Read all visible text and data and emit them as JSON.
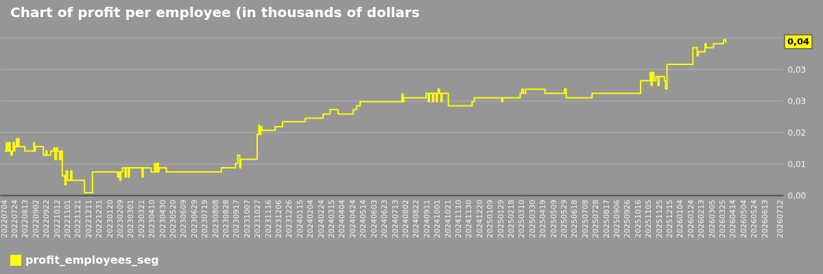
{
  "chart_data": {
    "type": "step",
    "title": "Chart of profit per employee (in thousands of dollars",
    "x": [
      "2022-07-05",
      "2022-07-08",
      "2022-07-10",
      "2022-07-13",
      "2022-07-15",
      "2022-07-17",
      "2022-07-19",
      "2022-07-21",
      "2022-07-23",
      "2022-07-24",
      "2022-07-27",
      "2022-07-29",
      "2022-07-30",
      "2022-08-01",
      "2022-08-12",
      "2022-08-29",
      "2022-08-30",
      "2022-09-01",
      "2022-09-16",
      "2022-09-21",
      "2022-09-23",
      "2022-09-30",
      "2022-10-06",
      "2022-10-08",
      "2022-10-11",
      "2022-10-13",
      "2022-10-17",
      "2022-10-19",
      "2022-10-22",
      "2022-10-27",
      "2022-10-29",
      "2022-11-01",
      "2022-11-07",
      "2022-11-09",
      "2022-12-03",
      "2022-12-18",
      "2023-02-04",
      "2023-02-06",
      "2023-02-08",
      "2023-02-10",
      "2023-02-13",
      "2023-02-18",
      "2023-02-20",
      "2023-02-24",
      "2023-02-26",
      "2023-03-22",
      "2023-03-24",
      "2023-04-08",
      "2023-04-15",
      "2023-04-17",
      "2023-04-20",
      "2023-04-22",
      "2023-04-23",
      "2023-05-07",
      "2023-08-19",
      "2023-09-15",
      "2023-09-19",
      "2023-09-23",
      "2023-09-25",
      "2023-10-26",
      "2023-10-29",
      "2023-10-31",
      "2023-11-02",
      "2023-11-04",
      "2023-11-29",
      "2023-12-13",
      "2024-01-25",
      "2024-02-28",
      "2024-03-12",
      "2024-03-27",
      "2024-04-25",
      "2024-05-01",
      "2024-05-08",
      "2024-07-26",
      "2024-07-28",
      "2024-07-30",
      "2024-09-10",
      "2024-09-14",
      "2024-09-16",
      "2024-09-22",
      "2024-09-24",
      "2024-09-29",
      "2024-10-01",
      "2024-10-03",
      "2024-10-05",
      "2024-10-08",
      "2024-10-10",
      "2024-10-22",
      "2024-12-06",
      "2024-12-10",
      "2025-01-31",
      "2025-02-02",
      "2025-03-07",
      "2025-03-10",
      "2025-03-13",
      "2025-03-17",
      "2025-04-23",
      "2025-05-30",
      "2025-06-02",
      "2025-07-21",
      "2025-10-21",
      "2025-11-08",
      "2025-11-10",
      "2025-11-12",
      "2025-11-15",
      "2025-11-19",
      "2025-11-23",
      "2025-11-25",
      "2025-12-05",
      "2025-12-07",
      "2025-12-10",
      "2026-01-28",
      "2026-02-05",
      "2026-02-07",
      "2026-02-20",
      "2026-02-22",
      "2026-03-08",
      "2026-03-27",
      "2026-03-31",
      "2026-04-02"
    ],
    "series": [
      {
        "name": "profit_employees_seg",
        "color": "#ffff00",
        "values": [
          0.0119,
          0.0142,
          0.0119,
          0.0142,
          0.0119,
          0.0108,
          0.0119,
          0.0142,
          0.0119,
          0.0131,
          0.0152,
          0.0131,
          0.0152,
          0.0131,
          0.0119,
          0.0142,
          0.0119,
          0.0131,
          0.0108,
          0.0119,
          0.0108,
          0.0119,
          0.0128,
          0.0096,
          0.0128,
          0.0119,
          0.0096,
          0.0119,
          0.0052,
          0.0028,
          0.0065,
          0.004,
          0.0065,
          0.004,
          0.0007,
          0.0063,
          0.0049,
          0.0063,
          0.004,
          0.0063,
          0.0074,
          0.0049,
          0.0074,
          0.0049,
          0.0074,
          0.0049,
          0.0074,
          0.0063,
          0.0086,
          0.0063,
          0.0086,
          0.0063,
          0.0074,
          0.0063,
          0.0074,
          0.0086,
          0.0108,
          0.0074,
          0.0097,
          0.0164,
          0.0188,
          0.0164,
          0.0185,
          0.0175,
          0.0185,
          0.0198,
          0.0208,
          0.0219,
          0.0231,
          0.0219,
          0.0231,
          0.0241,
          0.0252,
          0.0273,
          0.0252,
          0.0263,
          0.0275,
          0.0252,
          0.0275,
          0.0252,
          0.0275,
          0.0252,
          0.0275,
          0.0287,
          0.0275,
          0.0252,
          0.0275,
          0.0241,
          0.0252,
          0.0263,
          0.0252,
          0.0263,
          0.0275,
          0.0286,
          0.0275,
          0.0286,
          0.0275,
          0.0287,
          0.0263,
          0.0275,
          0.0309,
          0.0331,
          0.0296,
          0.0331,
          0.0309,
          0.032,
          0.0296,
          0.032,
          0.0309,
          0.0287,
          0.0353,
          0.0398,
          0.0376,
          0.0387,
          0.0409,
          0.0398,
          0.0409,
          0.042,
          0.0414,
          0.0414
        ]
      }
    ],
    "xlim": [
      "2022-06-26",
      "2026-07-18"
    ],
    "xticks": [
      {
        "value": "2022-07-04",
        "label": "20220704"
      },
      {
        "value": "2022-07-24",
        "label": "20220724"
      },
      {
        "value": "2022-08-13",
        "label": "20220813"
      },
      {
        "value": "2022-09-02",
        "label": "20220902"
      },
      {
        "value": "2022-09-22",
        "label": "20220922"
      },
      {
        "value": "2022-10-12",
        "label": "20221012"
      },
      {
        "value": "2022-11-01",
        "label": "20221101"
      },
      {
        "value": "2022-11-21",
        "label": "20221121"
      },
      {
        "value": "2022-12-11",
        "label": "20221211"
      },
      {
        "value": "2022-12-31",
        "label": "20221231"
      },
      {
        "value": "2023-01-20",
        "label": "20230120"
      },
      {
        "value": "2023-02-09",
        "label": "20230209"
      },
      {
        "value": "2023-03-01",
        "label": "20230301"
      },
      {
        "value": "2023-03-21",
        "label": "20230321"
      },
      {
        "value": "2023-04-10",
        "label": "20230410"
      },
      {
        "value": "2023-04-30",
        "label": "20230430"
      },
      {
        "value": "2023-05-20",
        "label": "20230520"
      },
      {
        "value": "2023-06-09",
        "label": "20230609"
      },
      {
        "value": "2023-06-29",
        "label": "20230629"
      },
      {
        "value": "2023-07-19",
        "label": "20230719"
      },
      {
        "value": "2023-08-08",
        "label": "20230808"
      },
      {
        "value": "2023-08-28",
        "label": "20230828"
      },
      {
        "value": "2023-09-17",
        "label": "20230917"
      },
      {
        "value": "2023-10-07",
        "label": "20231007"
      },
      {
        "value": "2023-10-27",
        "label": "20231027"
      },
      {
        "value": "2023-11-16",
        "label": "20231116"
      },
      {
        "value": "2023-12-06",
        "label": "20231206"
      },
      {
        "value": "2023-12-26",
        "label": "20231226"
      },
      {
        "value": "2024-01-15",
        "label": "20240115"
      },
      {
        "value": "2024-02-04",
        "label": "20240204"
      },
      {
        "value": "2024-02-24",
        "label": "20240224"
      },
      {
        "value": "2024-03-15",
        "label": "20240315"
      },
      {
        "value": "2024-04-04",
        "label": "20240404"
      },
      {
        "value": "2024-04-24",
        "label": "20240424"
      },
      {
        "value": "2024-05-14",
        "label": "20240514"
      },
      {
        "value": "2024-06-03",
        "label": "20240603"
      },
      {
        "value": "2024-06-23",
        "label": "20240623"
      },
      {
        "value": "2024-07-13",
        "label": "20240713"
      },
      {
        "value": "2024-08-02",
        "label": "20240802"
      },
      {
        "value": "2024-08-22",
        "label": "20240822"
      },
      {
        "value": "2024-09-11",
        "label": "20240911"
      },
      {
        "value": "2024-10-01",
        "label": "20241001"
      },
      {
        "value": "2024-10-21",
        "label": "20241021"
      },
      {
        "value": "2024-11-10",
        "label": "20241110"
      },
      {
        "value": "2024-11-30",
        "label": "20241130"
      },
      {
        "value": "2024-12-20",
        "label": "20241220"
      },
      {
        "value": "2025-01-09",
        "label": "20250109"
      },
      {
        "value": "2025-01-29",
        "label": "20250129"
      },
      {
        "value": "2025-02-18",
        "label": "20250218"
      },
      {
        "value": "2025-03-10",
        "label": "20250310"
      },
      {
        "value": "2025-03-30",
        "label": "20250330"
      },
      {
        "value": "2025-04-19",
        "label": "20250419"
      },
      {
        "value": "2025-05-09",
        "label": "20250509"
      },
      {
        "value": "2025-05-29",
        "label": "20250529"
      },
      {
        "value": "2025-06-18",
        "label": "20250618"
      },
      {
        "value": "2025-07-08",
        "label": "20250708"
      },
      {
        "value": "2025-07-28",
        "label": "20250728"
      },
      {
        "value": "2025-08-17",
        "label": "20250817"
      },
      {
        "value": "2025-09-06",
        "label": "20250906"
      },
      {
        "value": "2025-09-26",
        "label": "20250926"
      },
      {
        "value": "2025-10-16",
        "label": "20251016"
      },
      {
        "value": "2025-11-05",
        "label": "20251105"
      },
      {
        "value": "2025-11-25",
        "label": "20251125"
      },
      {
        "value": "2025-12-15",
        "label": "20251215"
      },
      {
        "value": "2026-01-04",
        "label": "20260104"
      },
      {
        "value": "2026-01-24",
        "label": "20260124"
      },
      {
        "value": "2026-02-13",
        "label": "20260213"
      },
      {
        "value": "2026-03-05",
        "label": "20260305"
      },
      {
        "value": "2026-03-25",
        "label": "20260325"
      },
      {
        "value": "2026-04-14",
        "label": "20260414"
      },
      {
        "value": "2026-05-04",
        "label": "20260504"
      },
      {
        "value": "2026-05-24",
        "label": "20260524"
      },
      {
        "value": "2026-06-13",
        "label": "20260613"
      },
      {
        "value": "2026-07-12",
        "label": "20260712"
      }
    ],
    "ylim": [
      0,
      0.0425
    ],
    "yticks": [
      {
        "value": 0,
        "label": "0,00"
      },
      {
        "value": 0.0085,
        "label": "0,01"
      },
      {
        "value": 0.017,
        "label": "0,02"
      },
      {
        "value": 0.0255,
        "label": "0,03"
      },
      {
        "value": 0.034,
        "label": "0,03"
      },
      {
        "value": 0.0425,
        "label": null
      }
    ],
    "annotations": [
      {
        "text": "0,04",
        "y": 0.0414
      }
    ],
    "grid": "y",
    "legend": "bottom left"
  }
}
